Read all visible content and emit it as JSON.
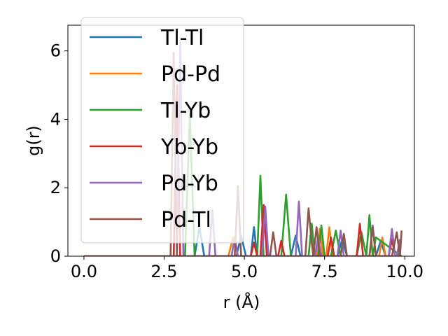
{
  "chart_data": {
    "type": "line",
    "title": "",
    "xlabel": "r (Å)",
    "ylabel": "g(r)",
    "xlim": [
      -0.5,
      10.3
    ],
    "ylim": [
      0,
      6.75
    ],
    "xticks": [
      0.0,
      2.5,
      5.0,
      7.5,
      10.0
    ],
    "xtick_labels": [
      "0.0",
      "2.5",
      "5.0",
      "7.5",
      "10.0"
    ],
    "yticks": [
      0,
      2,
      4,
      6
    ],
    "ytick_labels": [
      "0",
      "2",
      "4",
      "6"
    ],
    "grid": false,
    "legend_position": "top-left",
    "series": [
      {
        "name": "Tl-Tl",
        "color": "#1f77b4",
        "x": [
          0.0,
          3.45,
          3.6,
          3.75,
          4.75,
          4.9,
          5.05,
          5.2,
          5.3,
          5.4,
          6.45,
          6.6,
          6.75,
          7.9,
          8.05,
          8.2,
          9.1,
          9.25,
          9.4,
          9.9
        ],
        "y": [
          0,
          0,
          0.85,
          0,
          0,
          0.6,
          0,
          0,
          0.85,
          0,
          0,
          0.6,
          0,
          0,
          0.5,
          0,
          0,
          0.45,
          0,
          0
        ]
      },
      {
        "name": "Pd-Pd",
        "color": "#ff7f0e",
        "x": [
          0.0,
          4.5,
          4.65,
          4.8,
          7.25,
          7.35,
          7.45,
          7.55,
          7.65,
          7.75,
          9.2,
          9.3,
          9.4,
          9.9
        ],
        "y": [
          0,
          0,
          0.55,
          0,
          0,
          0.8,
          0,
          0,
          0.85,
          0,
          0,
          0.55,
          0,
          0
        ]
      },
      {
        "name": "Tl-Yb",
        "color": "#2ca02c",
        "x": [
          0.0,
          3.15,
          3.3,
          3.45,
          5.4,
          5.5,
          5.6,
          6.15,
          6.3,
          6.45,
          7.0,
          7.1,
          7.2,
          7.3,
          7.4,
          7.5,
          7.7,
          7.85,
          8.0,
          8.5,
          8.65,
          8.8,
          8.9,
          9.0,
          9.1,
          9.9
        ],
        "y": [
          0,
          0,
          4.15,
          0,
          0,
          2.35,
          0,
          0,
          1.8,
          0,
          0,
          0.95,
          0,
          0,
          0.9,
          0,
          0,
          0.75,
          0,
          0,
          0.7,
          0,
          1.2,
          0,
          0.55,
          0
        ]
      },
      {
        "name": "Yb-Yb",
        "color": "#d62728",
        "x": [
          0.0,
          2.8,
          2.9,
          3.0,
          5.2,
          5.3,
          5.4,
          5.5,
          5.6,
          5.7,
          6.05,
          6.15,
          6.25,
          7.6,
          7.7,
          7.8,
          8.5,
          8.6,
          8.7,
          9.5,
          9.6,
          9.7,
          9.9
        ],
        "y": [
          0,
          0,
          5.0,
          0,
          0,
          0.4,
          0,
          0,
          1.5,
          0,
          0,
          0.45,
          0,
          0,
          0.55,
          0,
          0,
          0.95,
          0,
          0,
          0.5,
          0,
          0
        ]
      },
      {
        "name": "Pd-Yb",
        "color": "#9467bd",
        "x": [
          0.0,
          2.9,
          3.0,
          3.1,
          3.9,
          4.0,
          4.1,
          4.6,
          4.7,
          4.8,
          5.55,
          5.65,
          5.75,
          6.6,
          6.7,
          6.8,
          7.2,
          7.3,
          7.4,
          7.9,
          8.0,
          8.1,
          8.9,
          9.0,
          9.1,
          9.5,
          9.6,
          9.7,
          9.75,
          9.85
        ],
        "y": [
          0,
          0,
          6.25,
          0,
          0,
          1.35,
          0,
          0,
          0.55,
          0,
          0,
          1.45,
          0,
          0,
          1.6,
          0,
          0,
          0.55,
          0,
          0,
          0.75,
          0,
          0,
          0.9,
          0,
          0,
          0.8,
          0,
          0,
          0.5
        ]
      },
      {
        "name": "Pd-Tl",
        "color": "#8c564b",
        "x": [
          0.0,
          2.7,
          2.8,
          2.9,
          4.7,
          4.8,
          4.9,
          5.8,
          5.9,
          6.0,
          6.9,
          7.0,
          7.1,
          7.15,
          7.25,
          7.35,
          7.4,
          8.0,
          8.1,
          8.2,
          8.9,
          9.0,
          9.1,
          9.6,
          9.75,
          9.85,
          9.9
        ],
        "y": [
          0,
          0,
          5.95,
          0,
          0,
          2.05,
          0,
          0,
          0.7,
          0,
          0,
          1.4,
          0.4,
          0,
          0.85,
          0,
          0,
          0,
          0.65,
          0,
          0,
          0.85,
          0,
          0,
          0.7,
          0,
          0.75
        ]
      }
    ]
  }
}
